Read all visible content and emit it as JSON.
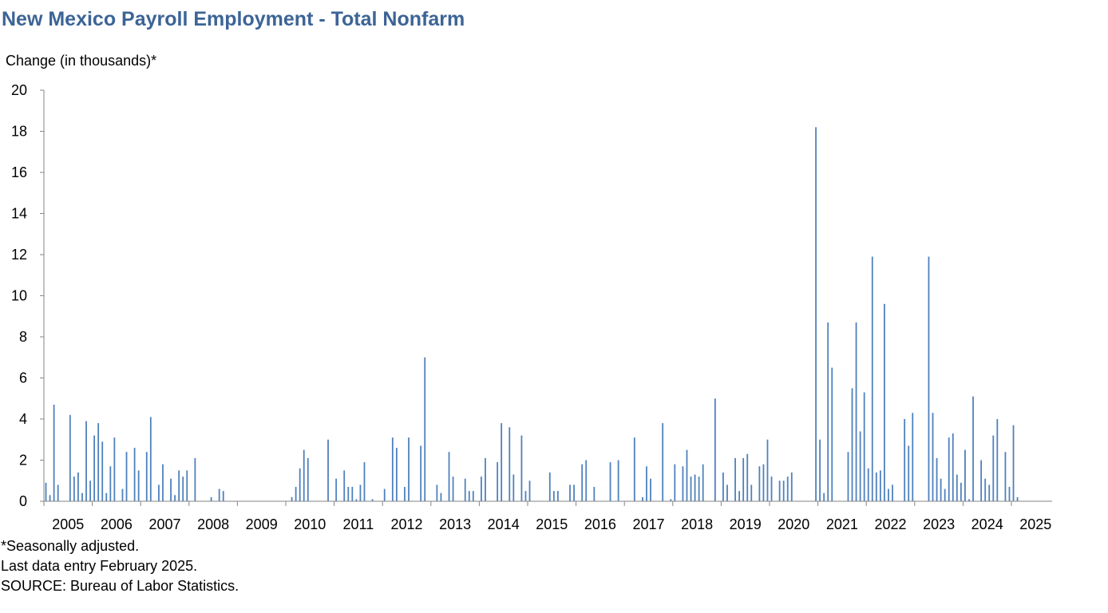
{
  "title": "New Mexico Payroll Employment - Total Nonfarm",
  "y_axis_label": "Change (in thousands)*",
  "notes": [
    "*Seasonally adjusted.",
    "Last data entry February 2025.",
    "SOURCE: Bureau of Labor Statistics."
  ],
  "colors": {
    "bar": "#4f81bd",
    "title": "#3c6496",
    "axis": "#868686"
  },
  "chart_data": {
    "type": "bar",
    "title": "New Mexico Payroll Employment - Total Nonfarm",
    "xlabel": "",
    "ylabel": "Change (in thousands)*",
    "ylim": [
      0,
      20
    ],
    "y_ticks": [
      0,
      2,
      4,
      6,
      8,
      10,
      12,
      14,
      16,
      18,
      20
    ],
    "x_ticks": [
      "2005",
      "2006",
      "2007",
      "2008",
      "2009",
      "2010",
      "2011",
      "2012",
      "2013",
      "2014",
      "2015",
      "2016",
      "2017",
      "2018",
      "2019",
      "2020",
      "2021",
      "2022",
      "2023",
      "2024",
      "2025"
    ],
    "grid": false,
    "legend": "none",
    "series": [
      {
        "values": {
          "2005": [
            0.9,
            0.3,
            4.7,
            0.8,
            0,
            0,
            4.2,
            1.2,
            1.4,
            0.4,
            3.9,
            1.0
          ],
          "2006": [
            3.2,
            3.8,
            2.9,
            0.4,
            1.7,
            3.1,
            0,
            0.6,
            2.4,
            0,
            2.6,
            1.5
          ],
          "2007": [
            0,
            2.4,
            4.1,
            0,
            0.8,
            1.8,
            0,
            1.1,
            0.3,
            1.5,
            1.2,
            1.5
          ],
          "2008": [
            0,
            2.1,
            0,
            0,
            0,
            0.2,
            0,
            0.6,
            0.5,
            0,
            0,
            0
          ],
          "2009": [
            0,
            0,
            0,
            0,
            0,
            0,
            0,
            0,
            0,
            0,
            0,
            0
          ],
          "2010": [
            0,
            0.2,
            0.7,
            1.6,
            2.5,
            2.1,
            0,
            0,
            0,
            0,
            3.0,
            0
          ],
          "2011": [
            1.1,
            0,
            1.5,
            0.7,
            0.7,
            0.1,
            0.8,
            1.9,
            0,
            0.1,
            0,
            0
          ],
          "2012": [
            0.6,
            0,
            3.1,
            2.6,
            0,
            0.7,
            3.1,
            0,
            0,
            2.7,
            7.0,
            0
          ],
          "2013": [
            0,
            0.8,
            0.4,
            0,
            2.4,
            1.2,
            0,
            0,
            1.1,
            0.5,
            0.5,
            0
          ],
          "2014": [
            1.2,
            2.1,
            0,
            0,
            1.9,
            3.8,
            0,
            3.6,
            1.3,
            0,
            3.2,
            0.5
          ],
          "2015": [
            1.0,
            0,
            0,
            0,
            0,
            1.4,
            0.5,
            0.5,
            0,
            0,
            0.8,
            0.8
          ],
          "2016": [
            0,
            1.8,
            2.0,
            0,
            0.7,
            0,
            0,
            0,
            1.9,
            0,
            2.0,
            0
          ],
          "2017": [
            0,
            0,
            3.1,
            0,
            0.2,
            1.7,
            1.1,
            0,
            0,
            3.8,
            0,
            0.1
          ],
          "2018": [
            1.8,
            0,
            1.7,
            2.5,
            1.2,
            1.3,
            1.2,
            1.8,
            0,
            0,
            5.0,
            0
          ],
          "2019": [
            1.4,
            0.8,
            0,
            2.1,
            0.5,
            2.1,
            2.3,
            0.8,
            0,
            1.7,
            1.8,
            3.0
          ],
          "2020": [
            1.2,
            0,
            1.0,
            1.0,
            1.2,
            1.4,
            0,
            0,
            0,
            0,
            0,
            18.2
          ],
          "2021": [
            3.0,
            0.4,
            8.7,
            6.5,
            0,
            0,
            0,
            2.4,
            5.5,
            8.7,
            3.4,
            5.3
          ],
          "2022": [
            1.6,
            11.9,
            1.4,
            1.5,
            9.6,
            0.6,
            0.8,
            0,
            0,
            4.0,
            2.7,
            4.3
          ],
          "2023": [
            0,
            0,
            0,
            11.9,
            4.3,
            2.1,
            1.1,
            0.6,
            3.1,
            3.3,
            1.3,
            0.9
          ],
          "2024": [
            2.5,
            0.1,
            5.1,
            0,
            2.0,
            1.1,
            0.8,
            3.2,
            4.0,
            0,
            2.4,
            0.7
          ],
          "2025": [
            3.7,
            0.2
          ]
        }
      }
    ],
    "extra_2024_2025": {
      "note": "",
      "values": []
    }
  }
}
